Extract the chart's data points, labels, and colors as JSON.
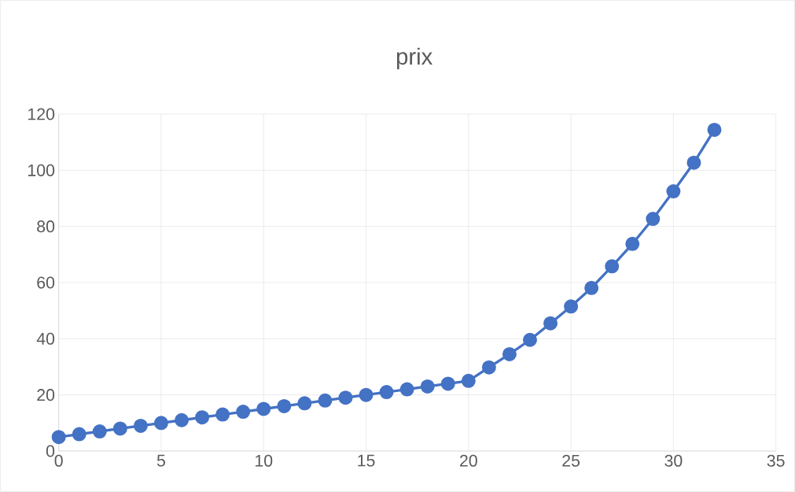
{
  "chart_data": {
    "type": "line",
    "title": "prix",
    "x": [
      0,
      1,
      2,
      3,
      4,
      5,
      6,
      7,
      8,
      9,
      10,
      11,
      12,
      13,
      14,
      15,
      16,
      17,
      18,
      19,
      20,
      21,
      22,
      23,
      24,
      25,
      26,
      27,
      28,
      29,
      30,
      31,
      32
    ],
    "series": [
      {
        "color": "#4472c4",
        "values": [
          5,
          6,
          7,
          8,
          9,
          10,
          11,
          12,
          13,
          14,
          15,
          16,
          17,
          18,
          19,
          20,
          21,
          22,
          23,
          24,
          25,
          29.8,
          34.5,
          39.6,
          45.5,
          51.5,
          58.1,
          65.8,
          73.8,
          82.7,
          92.5,
          102.7,
          114.4
        ]
      }
    ],
    "xlim": [
      0,
      35
    ],
    "ylim": [
      0,
      120
    ],
    "xticks": [
      0,
      5,
      10,
      15,
      20,
      25,
      30,
      35
    ],
    "yticks": [
      0,
      20,
      40,
      60,
      80,
      100,
      120
    ],
    "grid": true,
    "marker": "circle",
    "line_style": "solid"
  }
}
